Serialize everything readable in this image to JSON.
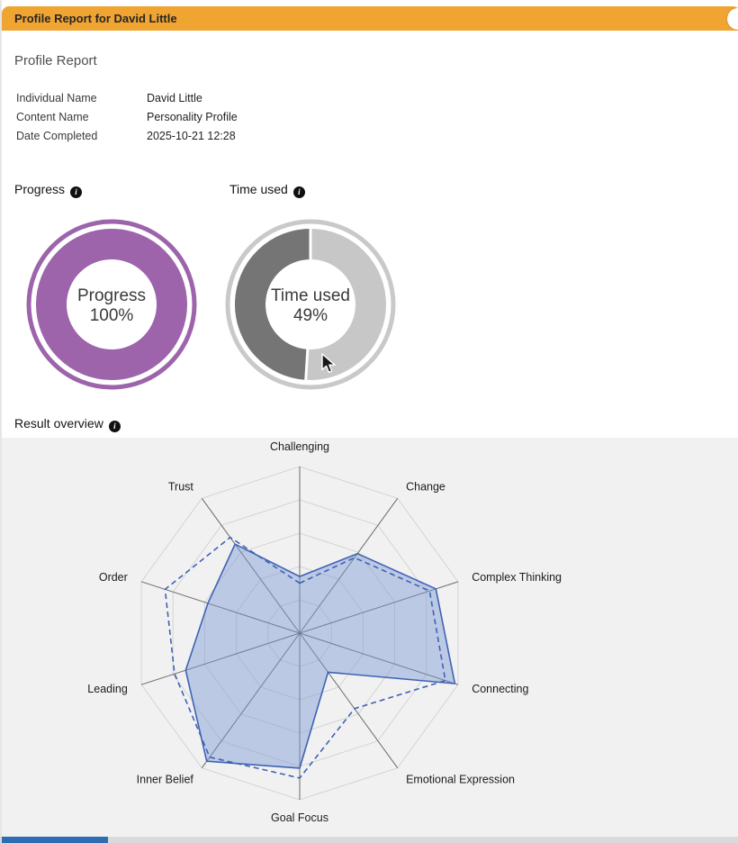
{
  "header": {
    "title": "Profile Report for David Little"
  },
  "page": {
    "title": "Profile Report"
  },
  "info": {
    "rows": [
      {
        "label": "Individual Name",
        "value": "David Little"
      },
      {
        "label": "Content Name",
        "value": "Personality Profile"
      },
      {
        "label": "Date Completed",
        "value": "2025-10-21 12:28"
      }
    ]
  },
  "sections": {
    "progress_label": "Progress",
    "time_used_label": "Time used",
    "result_overview_label": "Result overview"
  },
  "icons": {
    "info": "i"
  },
  "colors": {
    "accent_orange": "#f0a431",
    "progress_purple": "#9d63ab",
    "time_gray": "#757575",
    "radar_line": "#3f62b5"
  },
  "chart_data": [
    {
      "type": "donut",
      "id": "progress",
      "title": "Progress",
      "value_percent": 100,
      "center_label": "Progress",
      "center_value": "100%",
      "color": "#9d63ab",
      "outer_ring_color": "#9d63ab",
      "track_color": "#ffffff",
      "direction": "cw"
    },
    {
      "type": "donut",
      "id": "time_used",
      "title": "Time used",
      "value_percent": 49,
      "center_label": "Time used",
      "center_value": "49%",
      "color": "#757575",
      "outer_ring_color": "#c9c9c9",
      "track_color": "#c7c7c7",
      "direction": "ccw"
    },
    {
      "type": "radar",
      "id": "result_overview",
      "title": "Result overview",
      "axes": [
        "Challenging",
        "Change",
        "Complex Thinking",
        "Connecting",
        "Emotional Expression",
        "Goal Focus",
        "Inner Belief",
        "Leading",
        "Order",
        "Trust"
      ],
      "scale": {
        "min": 0,
        "max": 10,
        "rings": 5
      },
      "series": [
        {
          "name": "result-solid",
          "style": "solid",
          "values": [
            3.4,
            5.9,
            8.6,
            9.8,
            2.9,
            8.1,
            9.5,
            7.2,
            5.8,
            6.6
          ]
        },
        {
          "name": "result-dashed",
          "style": "dashed",
          "values": [
            3.0,
            5.6,
            8.2,
            9.2,
            5.6,
            8.7,
            9.2,
            7.9,
            8.5,
            7.1
          ]
        }
      ],
      "fill_color": "rgba(122,152,212,0.45)",
      "line_color": "#3f62b5",
      "grid_color": "#d4d4d4",
      "axis_color": "#6a6a6a",
      "background": "#f1f1f1",
      "legend_position": "none"
    }
  ]
}
